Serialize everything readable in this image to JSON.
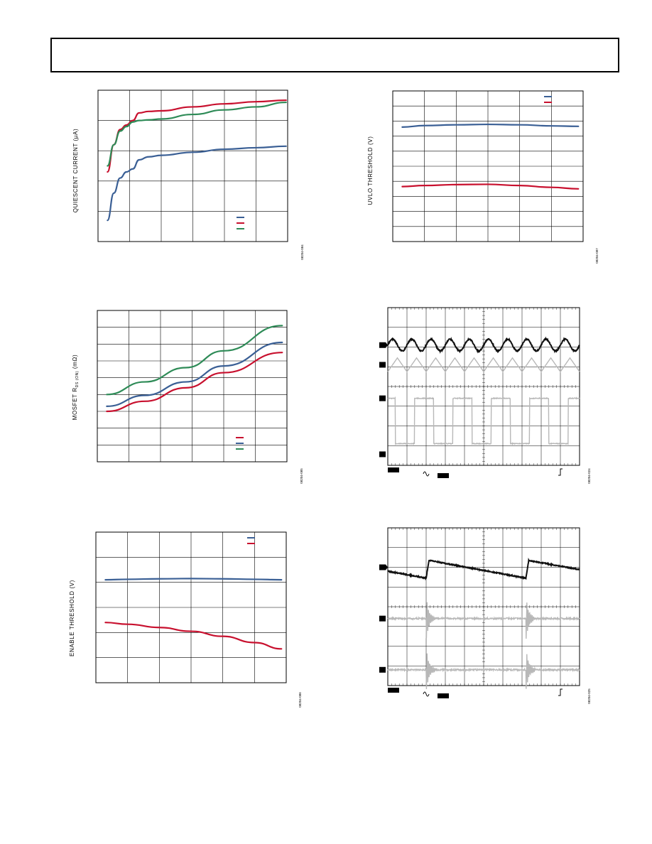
{
  "colors": {
    "blue": "#3a5f95",
    "red": "#c8102e",
    "green": "#2e8b57",
    "grid": "#000000",
    "scope_dark": "#111111",
    "scope_light": "#b8b8b8"
  },
  "chart_data": [
    {
      "id": "quiescent-current",
      "type": "line",
      "title": "",
      "xlabel": "",
      "ylabel": "QUIESCENT CURRENT (µA)",
      "fig_code": "08204-084",
      "xlim": [
        0,
        6
      ],
      "ylim": [
        0,
        5
      ],
      "grid": true,
      "legend": "bottom-right",
      "series": [
        {
          "color": "blue",
          "x": [
            0.3,
            0.5,
            0.7,
            0.9,
            1.1,
            1.3,
            1.6,
            2,
            3,
            4,
            5,
            5.95
          ],
          "y": [
            0.7,
            1.6,
            2.1,
            2.3,
            2.4,
            2.7,
            2.8,
            2.85,
            2.95,
            3.05,
            3.1,
            3.15
          ]
        },
        {
          "color": "red",
          "x": [
            0.3,
            0.5,
            0.7,
            0.9,
            1.1,
            1.3,
            1.6,
            2,
            3,
            4,
            5,
            5.95
          ],
          "y": [
            2.3,
            3.2,
            3.7,
            3.85,
            4.0,
            4.25,
            4.3,
            4.32,
            4.45,
            4.55,
            4.62,
            4.67
          ]
        },
        {
          "color": "green",
          "x": [
            0.3,
            0.5,
            0.7,
            0.9,
            1.1,
            1.3,
            1.6,
            2,
            3,
            4,
            5,
            5.95
          ],
          "y": [
            2.5,
            3.2,
            3.65,
            3.8,
            3.95,
            4.0,
            4.02,
            4.05,
            4.2,
            4.35,
            4.45,
            4.6
          ]
        }
      ]
    },
    {
      "id": "uvlo-threshold",
      "type": "line",
      "title": "",
      "xlabel": "",
      "ylabel": "UVLO THRESHOLD (V)",
      "fig_code": "08204-087",
      "xlim": [
        0,
        6
      ],
      "ylim": [
        0,
        10
      ],
      "grid": true,
      "legend": "top-right",
      "series": [
        {
          "color": "blue",
          "x": [
            0.3,
            1,
            2,
            3,
            4,
            5,
            5.85
          ],
          "y": [
            7.6,
            7.7,
            7.75,
            7.78,
            7.75,
            7.68,
            7.65
          ]
        },
        {
          "color": "red",
          "x": [
            0.3,
            1,
            2,
            3,
            4,
            5,
            5.85
          ],
          "y": [
            3.65,
            3.72,
            3.78,
            3.8,
            3.72,
            3.6,
            3.5
          ]
        }
      ]
    },
    {
      "id": "mosfet-rds-on",
      "type": "line",
      "title": "",
      "xlabel": "",
      "ylabel": "MOSFET R",
      "ylabel_sub": "DS (ON)",
      "ylabel_unit": " (mΩ)",
      "fig_code": "08204-085",
      "xlim": [
        0,
        6
      ],
      "ylim": [
        0,
        9
      ],
      "grid": true,
      "legend": "bottom-right",
      "series": [
        {
          "color": "red",
          "x": [
            0.3,
            1.5,
            2.8,
            4,
            5.85
          ],
          "y": [
            3.0,
            3.6,
            4.4,
            5.3,
            6.5
          ]
        },
        {
          "color": "blue",
          "x": [
            0.3,
            1.5,
            2.8,
            4,
            5.85
          ],
          "y": [
            3.3,
            3.95,
            4.75,
            5.7,
            7.1
          ]
        },
        {
          "color": "green",
          "x": [
            0.3,
            1.5,
            2.8,
            4,
            5.85
          ],
          "y": [
            4.0,
            4.75,
            5.6,
            6.6,
            8.1
          ]
        }
      ]
    },
    {
      "id": "enable-threshold",
      "type": "line",
      "title": "",
      "xlabel": "",
      "ylabel": "ENABLE THRESHOLD (V)",
      "fig_code": "08204-086",
      "xlim": [
        0,
        6
      ],
      "ylim": [
        0,
        6
      ],
      "grid": true,
      "legend": "top-right",
      "series": [
        {
          "color": "blue",
          "x": [
            0.3,
            1,
            2,
            3,
            4,
            5,
            5.85
          ],
          "y": [
            4.1,
            4.12,
            4.14,
            4.15,
            4.14,
            4.12,
            4.1
          ]
        },
        {
          "color": "red",
          "x": [
            0.3,
            1,
            2,
            3,
            4,
            5,
            5.85
          ],
          "y": [
            2.4,
            2.33,
            2.2,
            2.05,
            1.85,
            1.6,
            1.35
          ]
        }
      ]
    },
    {
      "id": "scope-1",
      "type": "line",
      "title": "",
      "fig_code": "08204-024",
      "grid": true,
      "divisions": [
        10,
        8
      ],
      "channel_marks": [
        "",
        "",
        ""
      ],
      "series": [
        {
          "color": "scope_dark",
          "kind": "sine",
          "period_div": 1.0,
          "center_div": 1.9,
          "amp_div": 0.3
        },
        {
          "color": "scope_light",
          "kind": "triangle",
          "period_div": 1.0,
          "center_div": 2.9,
          "amp_div": 0.35
        },
        {
          "color": "scope_light",
          "kind": "pulse",
          "period_div": 2.0,
          "high_div": 4.6,
          "low_div": 6.9,
          "duty": 0.5
        }
      ]
    },
    {
      "id": "scope-2",
      "type": "line",
      "title": "",
      "fig_code": "08204-025",
      "grid": true,
      "divisions": [
        10,
        8
      ],
      "channel_marks": [
        "",
        "",
        ""
      ],
      "series": [
        {
          "color": "scope_dark",
          "kind": "sawtooth",
          "period_div": 5.2,
          "start_div": 2.0,
          "center_div": 2.0
        },
        {
          "color": "scope_light",
          "kind": "ringing",
          "period_div": 5.2,
          "start_div": 2.0,
          "center_div": 4.6
        },
        {
          "color": "scope_light",
          "kind": "ringing",
          "period_div": 5.2,
          "start_div": 2.0,
          "center_div": 7.2
        }
      ]
    }
  ]
}
